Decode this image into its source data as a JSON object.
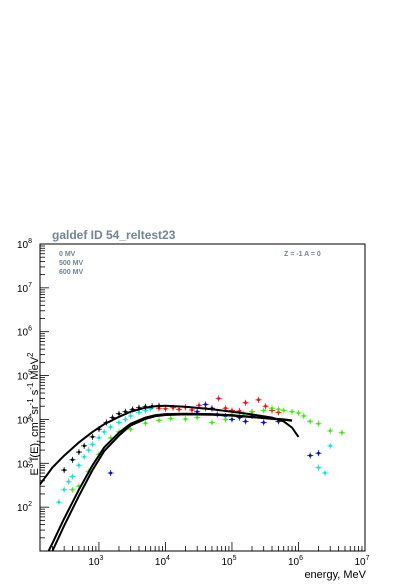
{
  "chart_data": {
    "type": "scatter",
    "title": "galdef ID 54_reltest23",
    "annotation": "Z = -1  A = 0",
    "legend": [
      "0 MV",
      "500 MV",
      "600 MV"
    ],
    "xlabel": "energy, MeV",
    "ylabel": "E^3 I(E), cm^2 sr^-1 s^-1 MeV^2",
    "xscale": "log",
    "yscale": "log",
    "xlim": [
      130,
      10000000
    ],
    "ylim": [
      10,
      100000000
    ],
    "x_ticks": [
      {
        "value": 1000,
        "mantissa": "10",
        "exp": "3"
      },
      {
        "value": 10000,
        "mantissa": "10",
        "exp": "4"
      },
      {
        "value": 100000,
        "mantissa": "10",
        "exp": "5"
      },
      {
        "value": 1000000,
        "mantissa": "10",
        "exp": "6"
      },
      {
        "value": 10000000,
        "mantissa": "10",
        "exp": "7"
      }
    ],
    "y_ticks": [
      {
        "value": 100,
        "mantissa": "10",
        "exp": "2"
      },
      {
        "value": 1000,
        "mantissa": "10",
        "exp": "3"
      },
      {
        "value": 10000,
        "mantissa": "10",
        "exp": "4"
      },
      {
        "value": 100000,
        "mantissa": "10",
        "exp": "5"
      },
      {
        "value": 1000000,
        "mantissa": "10",
        "exp": "6"
      },
      {
        "value": 10000000,
        "mantissa": "10",
        "exp": "7"
      },
      {
        "value": 100000000,
        "mantissa": "10",
        "exp": "8"
      }
    ],
    "model_curves": [
      {
        "color": "#000000",
        "x": [
          130,
          200,
          300,
          500,
          800,
          1200,
          2000,
          3000,
          5000,
          7000,
          10000,
          20000,
          50000,
          100000,
          200000,
          400000,
          600000,
          800000,
          1000000
        ],
        "y": [
          330,
          800,
          1500,
          3000,
          5200,
          7800,
          11500,
          15000,
          18500,
          20000,
          20500,
          19500,
          17000,
          15000,
          13000,
          11000,
          9000,
          6500,
          4000
        ]
      },
      {
        "color": "#000000",
        "x": [
          130,
          200,
          300,
          500,
          800,
          1200,
          2000,
          3000,
          5000,
          7000,
          10000,
          20000,
          50000,
          100000,
          200000,
          400000,
          600000,
          800000
        ],
        "y": [
          4,
          15,
          55,
          250,
          900,
          2300,
          5000,
          8000,
          11000,
          12500,
          13200,
          13500,
          13200,
          12500,
          11500,
          10500,
          10000,
          9500
        ]
      },
      {
        "color": "#000000",
        "x": [
          130,
          200,
          300,
          500,
          800,
          1200,
          2000,
          3000,
          5000,
          7000,
          10000,
          20000,
          50000,
          100000,
          200000,
          400000,
          600000,
          800000
        ],
        "y": [
          3,
          10,
          38,
          180,
          700,
          1900,
          4300,
          7300,
          10300,
          11800,
          12600,
          13000,
          12800,
          12200,
          11300,
          10300,
          9800,
          9300
        ]
      }
    ],
    "series": [
      {
        "color": "#ff0000",
        "x": [
          8000,
          10000,
          13000,
          16000,
          20000,
          25000,
          32000,
          40000,
          50000,
          63000,
          80000,
          100000,
          130000,
          160000,
          200000,
          250000,
          320000,
          400000,
          500000
        ],
        "y": [
          18000,
          17500,
          18500,
          17000,
          19000,
          16500,
          21000,
          18000,
          17500,
          30000,
          18000,
          16000,
          15500,
          24000,
          15000,
          28000,
          20000,
          16000,
          14500
        ]
      },
      {
        "color": "#0000cc",
        "x": [
          1500,
          30000,
          40000,
          50000,
          60000,
          80000,
          100000,
          130000,
          160000,
          200000,
          300000,
          500000,
          1500000,
          2000000
        ],
        "y": [
          600,
          15000,
          22000,
          18000,
          13000,
          12000,
          10000,
          11000,
          9000,
          12000,
          8500,
          9000,
          1500,
          1700
        ]
      },
      {
        "color": "#00e5e5",
        "x": [
          250,
          300,
          350,
          400,
          500,
          600,
          700,
          800,
          1000,
          1200,
          1500,
          2000,
          2500,
          3000,
          4000,
          5000,
          6000,
          2000000,
          2500000,
          3000000
        ],
        "y": [
          130,
          250,
          380,
          500,
          900,
          1400,
          2000,
          2700,
          3800,
          5200,
          6700,
          8500,
          10000,
          12000,
          14500,
          16000,
          17500,
          800,
          600,
          2500
        ]
      },
      {
        "color": "#33ee00",
        "x": [
          400,
          500,
          700,
          1000,
          1500,
          2000,
          3000,
          5000,
          8000,
          12000,
          20000,
          30000,
          50000,
          80000,
          100000,
          150000,
          200000,
          300000,
          400000,
          500000,
          600000,
          800000,
          1000000,
          1200000,
          1500000,
          2000000,
          3000000,
          4500000
        ],
        "y": [
          250,
          300,
          650,
          1600,
          3800,
          5200,
          6000,
          8200,
          9500,
          10500,
          10200,
          11000,
          8500,
          10000,
          13000,
          13500,
          15000,
          16000,
          18000,
          17000,
          16000,
          15000,
          14000,
          12000,
          9000,
          8000,
          5500,
          5000
        ]
      },
      {
        "color": "#000000",
        "x": [
          300,
          400,
          500,
          600,
          800,
          1000,
          1300,
          1600,
          2000,
          2500,
          3200,
          4000,
          5000,
          6300,
          8000
        ],
        "y": [
          700,
          1200,
          1800,
          2500,
          4000,
          6000,
          8500,
          11000,
          13500,
          15000,
          17000,
          18500,
          19500,
          20000,
          20500
        ]
      }
    ]
  }
}
